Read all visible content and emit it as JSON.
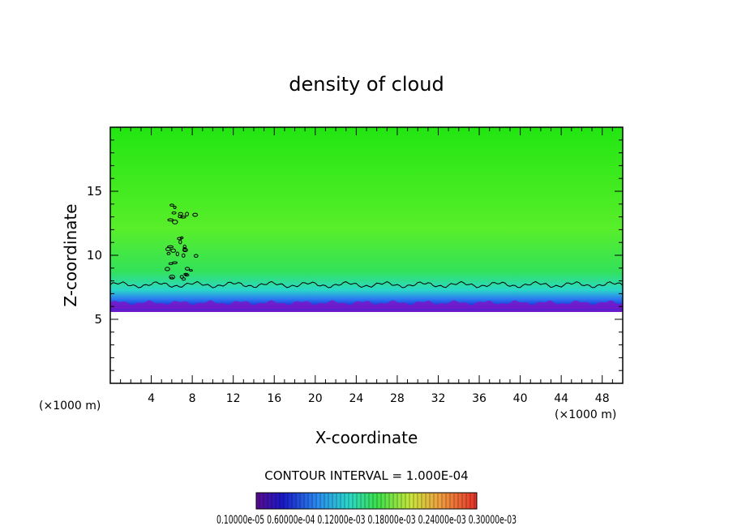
{
  "chart_data": {
    "type": "heatmap",
    "title": "density of cloud",
    "xlabel": "X-coordinate",
    "ylabel": "Z-coordinate",
    "x_unit_label": "(×1000 m)",
    "y_unit_label": "(×1000 m)",
    "xlim": [
      0,
      50
    ],
    "ylim": [
      0,
      20
    ],
    "x_ticks": [
      4,
      8,
      12,
      16,
      20,
      24,
      28,
      32,
      36,
      40,
      44,
      48
    ],
    "y_ticks": [
      5,
      10,
      15
    ],
    "contour_interval_text": "CONTOUR INTERVAL = 1.000E-04",
    "colorbar_tick_text": "0.10000e-05  0.60000e-04  0.12000e-03  0.18000e-03  0.24000e-03  0.30000e-03",
    "field": {
      "cloud_base_km": 5.8,
      "cloud_top_km": 20,
      "contour_top_km": 7.7,
      "isolated_cells_x_km": [
        4.5,
        7.5
      ]
    },
    "colors": {
      "high": "#22e612",
      "mid": "#3cd8ff",
      "low": "#1a2adc",
      "base": "#7a18c8"
    },
    "grid": false
  }
}
